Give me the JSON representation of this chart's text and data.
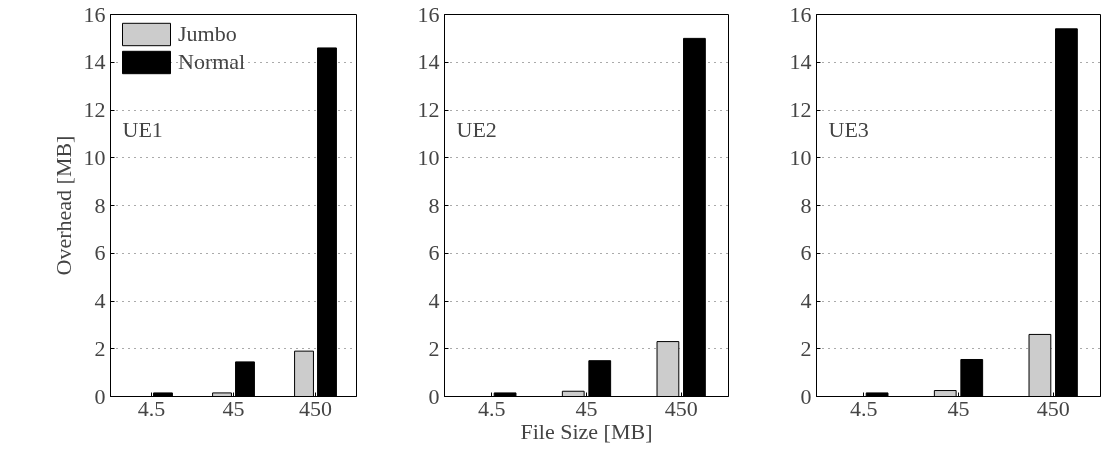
{
  "chart_data": [
    {
      "type": "bar",
      "categories": [
        "4.5",
        "45",
        "450"
      ],
      "ylabel": "Overhead [MB]",
      "annotations": [
        "UE1"
      ],
      "ylim": [
        0,
        16
      ],
      "yticks": [
        0,
        2,
        4,
        6,
        8,
        10,
        12,
        14,
        16
      ],
      "grid": "y",
      "legend": "top left",
      "series": [
        {
          "name": "Jumbo",
          "color": "#cccccc",
          "values": [
            null,
            0.15,
            1.9
          ]
        },
        {
          "name": "Normal",
          "color": "#000000",
          "values": [
            0.15,
            1.45,
            14.6
          ]
        }
      ]
    },
    {
      "type": "bar",
      "categories": [
        "4.5",
        "45",
        "450"
      ],
      "xlabel": "File Size [MB]",
      "annotations": [
        "UE2"
      ],
      "ylim": [
        0,
        16
      ],
      "yticks": [
        0,
        2,
        4,
        6,
        8,
        10,
        12,
        14,
        16
      ],
      "grid": "y",
      "series": [
        {
          "color": "#cccccc",
          "values": [
            null,
            0.22,
            2.3
          ]
        },
        {
          "color": "#000000",
          "values": [
            0.15,
            1.5,
            15.0
          ]
        }
      ]
    },
    {
      "type": "bar",
      "categories": [
        "4.5",
        "45",
        "450"
      ],
      "annotations": [
        "UE3"
      ],
      "ylim": [
        0,
        16
      ],
      "yticks": [
        0,
        2,
        4,
        6,
        8,
        10,
        12,
        14,
        16
      ],
      "grid": "y",
      "series": [
        {
          "color": "#cccccc",
          "values": [
            null,
            0.25,
            2.6
          ]
        },
        {
          "color": "#000000",
          "values": [
            0.15,
            1.55,
            15.4
          ]
        }
      ]
    }
  ]
}
